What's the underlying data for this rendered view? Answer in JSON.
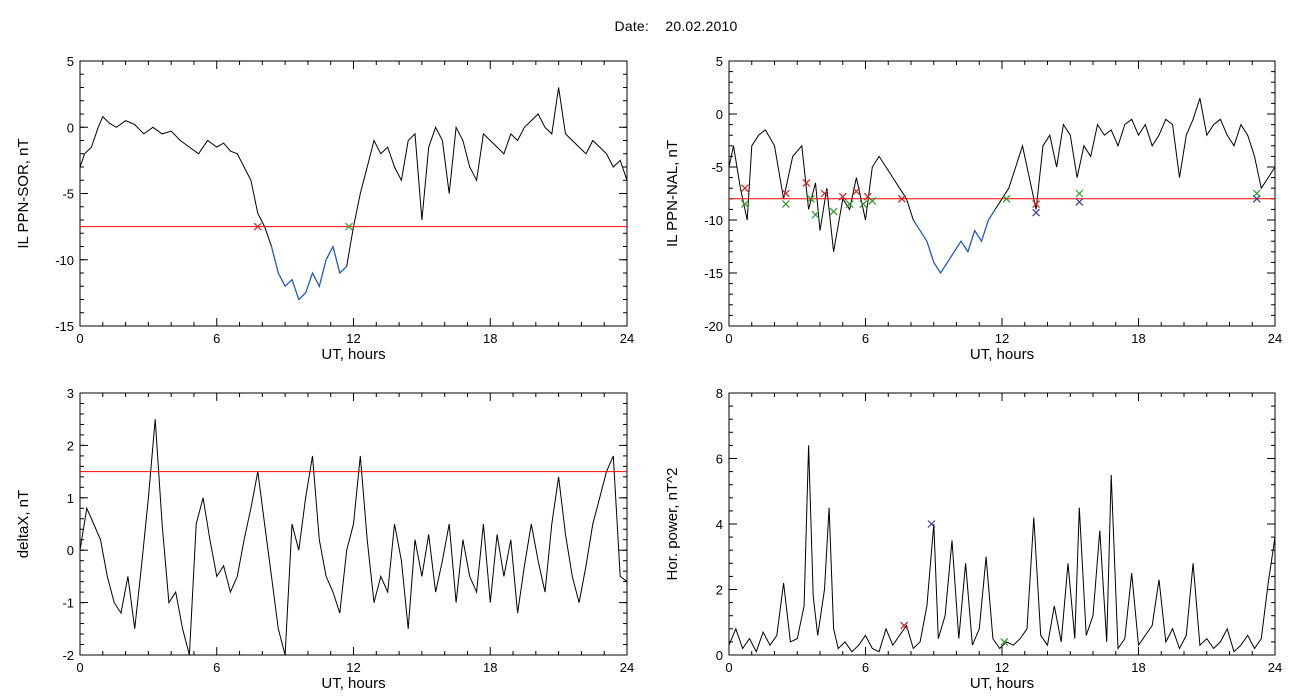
{
  "header": {
    "date_label": "Date:",
    "date_value": "20.02.2010"
  },
  "colors": {
    "trace": "#000000",
    "threshold": "#ff0000",
    "highlight": "#1f5fcc",
    "marker_red": "#d42020",
    "marker_green": "#2a9a2a",
    "marker_blue": "#3a3aa0"
  },
  "chart_data": [
    {
      "id": "p1",
      "type": "line",
      "ylabel": "IL PPN-SOR, nT",
      "xlabel": "UT, hours",
      "xlim": [
        0,
        24
      ],
      "ylim": [
        -15,
        5
      ],
      "xticks": [
        "0",
        "6",
        "12",
        "18",
        "24"
      ],
      "yticks": [
        "-15",
        "-10",
        "-5",
        "0",
        "5"
      ],
      "threshold": -7.5,
      "series": [
        {
          "x": [
            0,
            0.2,
            0.5,
            0.8,
            1,
            1.3,
            1.6,
            2,
            2.4,
            2.8,
            3.2,
            3.6,
            4,
            4.4,
            4.8,
            5.2,
            5.6,
            6,
            6.3,
            6.6,
            6.9,
            7.2,
            7.5,
            7.8,
            8.1,
            8.4,
            8.7,
            9,
            9.3,
            9.6,
            9.9,
            10.2,
            10.5,
            10.8,
            11.1,
            11.4,
            11.7,
            12,
            12.3,
            12.6,
            12.9,
            13.2,
            13.5,
            13.8,
            14.1,
            14.4,
            14.7,
            15,
            15.3,
            15.6,
            15.9,
            16.2,
            16.5,
            16.8,
            17.1,
            17.4,
            17.7,
            18,
            18.3,
            18.6,
            18.9,
            19.2,
            19.5,
            19.8,
            20.1,
            20.4,
            20.7,
            21,
            21.3,
            21.6,
            21.9,
            22.2,
            22.5,
            22.8,
            23.1,
            23.4,
            23.7,
            24
          ],
          "y": [
            -3,
            -2,
            -1.5,
            0,
            0.8,
            0.3,
            0,
            0.5,
            0.2,
            -0.5,
            0,
            -0.5,
            -0.3,
            -1,
            -1.5,
            -2,
            -1,
            -1.5,
            -1.2,
            -1.8,
            -2,
            -3,
            -4,
            -6.5,
            -7.5,
            -9,
            -11,
            -12,
            -11.5,
            -13,
            -12.5,
            -11,
            -12,
            -10,
            -9,
            -11,
            -10.5,
            -7.5,
            -5,
            -3,
            -1,
            -2,
            -1.5,
            -3,
            -4,
            -1,
            -0.5,
            -7,
            -1.5,
            0,
            -1,
            -5,
            0,
            -1,
            -3,
            -4,
            -0.5,
            -1,
            -1.5,
            -2,
            -0.5,
            -1,
            0,
            0.5,
            1,
            0,
            -0.5,
            3,
            -0.5,
            -1,
            -1.5,
            -2,
            -1,
            -1.5,
            -2,
            -3,
            -2.5,
            -4
          ]
        }
      ],
      "markers": [
        {
          "x": 7.8,
          "y": -7.5,
          "color": "red"
        },
        {
          "x": 11.8,
          "y": -7.5,
          "color": "green"
        }
      ]
    },
    {
      "id": "p2",
      "type": "line",
      "ylabel": "IL PPN-NAL, nT",
      "xlabel": "UT, hours",
      "xlim": [
        0,
        24
      ],
      "ylim": [
        -20,
        5
      ],
      "xticks": [
        "0",
        "6",
        "12",
        "18",
        "24"
      ],
      "yticks": [
        "-20",
        "-15",
        "-10",
        "-5",
        "0",
        "5"
      ],
      "threshold": -8,
      "series": [
        {
          "x": [
            0,
            0.2,
            0.5,
            0.8,
            1,
            1.3,
            1.6,
            2,
            2.4,
            2.8,
            3.2,
            3.5,
            3.8,
            4,
            4.3,
            4.6,
            5,
            5.3,
            5.6,
            6,
            6.3,
            6.6,
            6.9,
            7.2,
            7.5,
            7.8,
            8.1,
            8.4,
            8.7,
            9,
            9.3,
            9.6,
            9.9,
            10.2,
            10.5,
            10.8,
            11.1,
            11.4,
            11.7,
            12,
            12.3,
            12.6,
            12.9,
            13.2,
            13.5,
            13.8,
            14.1,
            14.4,
            14.7,
            15,
            15.3,
            15.6,
            15.9,
            16.2,
            16.5,
            16.8,
            17.1,
            17.4,
            17.7,
            18,
            18.3,
            18.6,
            18.9,
            19.2,
            19.5,
            19.8,
            20.1,
            20.4,
            20.7,
            21,
            21.3,
            21.6,
            21.9,
            22.2,
            22.5,
            22.8,
            23.1,
            23.4,
            23.7,
            24
          ],
          "y": [
            -5,
            -3,
            -7,
            -10,
            -3,
            -2,
            -1.5,
            -3,
            -8,
            -4,
            -3,
            -9,
            -6.5,
            -11,
            -7,
            -13,
            -8,
            -9,
            -6,
            -10,
            -5,
            -4,
            -5,
            -6,
            -7,
            -8,
            -10,
            -11,
            -12,
            -14,
            -15,
            -14,
            -13,
            -12,
            -13,
            -11,
            -12,
            -10,
            -9,
            -8,
            -7,
            -5,
            -3,
            -6,
            -9,
            -3,
            -2,
            -5,
            -1,
            -2,
            -6,
            -3,
            -4,
            -1,
            -2,
            -1.5,
            -3,
            -1,
            -0.5,
            -2,
            -1,
            -3,
            -2,
            -0.5,
            -1,
            -6,
            -2,
            -0.5,
            1.5,
            -2,
            -1,
            -0.5,
            -2,
            -3,
            -1,
            -2,
            -4,
            -7,
            -6,
            -5
          ]
        }
      ],
      "markers": [
        {
          "x": 0.7,
          "y": -7,
          "color": "red"
        },
        {
          "x": 0.7,
          "y": -8.5,
          "color": "green"
        },
        {
          "x": 2.5,
          "y": -7.5,
          "color": "red"
        },
        {
          "x": 2.5,
          "y": -8.5,
          "color": "green"
        },
        {
          "x": 3.4,
          "y": -6.5,
          "color": "red"
        },
        {
          "x": 3.6,
          "y": -8,
          "color": "green"
        },
        {
          "x": 3.8,
          "y": -9.5,
          "color": "green"
        },
        {
          "x": 4.2,
          "y": -7.5,
          "color": "red"
        },
        {
          "x": 4.6,
          "y": -9.2,
          "color": "green"
        },
        {
          "x": 5.0,
          "y": -7.8,
          "color": "red"
        },
        {
          "x": 5.3,
          "y": -8.5,
          "color": "green"
        },
        {
          "x": 5.6,
          "y": -7.3,
          "color": "red"
        },
        {
          "x": 5.9,
          "y": -8.5,
          "color": "green"
        },
        {
          "x": 6.1,
          "y": -7.8,
          "color": "red"
        },
        {
          "x": 6.3,
          "y": -8.2,
          "color": "green"
        },
        {
          "x": 7.6,
          "y": -8,
          "color": "red"
        },
        {
          "x": 12.2,
          "y": -8,
          "color": "green"
        },
        {
          "x": 13.5,
          "y": -9.3,
          "color": "blue"
        },
        {
          "x": 13.5,
          "y": -8.5,
          "color": "red"
        },
        {
          "x": 15.4,
          "y": -8.3,
          "color": "blue"
        },
        {
          "x": 15.4,
          "y": -7.5,
          "color": "green"
        },
        {
          "x": 23.2,
          "y": -8,
          "color": "blue"
        },
        {
          "x": 23.2,
          "y": -7.5,
          "color": "green"
        }
      ]
    },
    {
      "id": "p3",
      "type": "line",
      "ylabel": "deltaX, nT",
      "xlabel": "UT, hours",
      "xlim": [
        0,
        24
      ],
      "ylim": [
        -2,
        3
      ],
      "xticks": [
        "0",
        "6",
        "12",
        "18",
        "24"
      ],
      "yticks": [
        "-2",
        "-1",
        "0",
        "1",
        "2",
        "3"
      ],
      "threshold": 1.5,
      "series": [
        {
          "x": [
            0,
            0.3,
            0.6,
            0.9,
            1.2,
            1.5,
            1.8,
            2.1,
            2.4,
            2.7,
            3,
            3.3,
            3.6,
            3.9,
            4.2,
            4.5,
            4.8,
            5.1,
            5.4,
            5.7,
            6,
            6.3,
            6.6,
            6.9,
            7.2,
            7.5,
            7.8,
            8.1,
            8.4,
            8.7,
            9,
            9.3,
            9.6,
            9.9,
            10.2,
            10.5,
            10.8,
            11.1,
            11.4,
            11.7,
            12,
            12.3,
            12.6,
            12.9,
            13.2,
            13.5,
            13.8,
            14.1,
            14.4,
            14.7,
            15,
            15.3,
            15.6,
            15.9,
            16.2,
            16.5,
            16.8,
            17.1,
            17.4,
            17.7,
            18,
            18.3,
            18.6,
            18.9,
            19.2,
            19.5,
            19.8,
            20.1,
            20.4,
            20.7,
            21,
            21.3,
            21.6,
            21.9,
            22.2,
            22.5,
            22.8,
            23.1,
            23.4,
            23.7,
            24
          ],
          "y": [
            0,
            0.8,
            0.5,
            0.2,
            -0.5,
            -1,
            -1.2,
            -0.5,
            -1.5,
            -0.3,
            1,
            2.5,
            0.5,
            -1,
            -0.8,
            -1.5,
            -2,
            0.5,
            1,
            0.2,
            -0.5,
            -0.3,
            -0.8,
            -0.5,
            0.2,
            0.8,
            1.5,
            0.5,
            -0.5,
            -1.5,
            -2,
            0.5,
            0,
            1,
            1.8,
            0.2,
            -0.5,
            -0.8,
            -1.2,
            0,
            0.5,
            1.8,
            0.2,
            -1,
            -0.5,
            -0.8,
            0.5,
            -0.2,
            -1.5,
            0.2,
            -0.5,
            0.3,
            -0.8,
            -0.2,
            0.5,
            -1,
            0.2,
            -0.5,
            -0.8,
            0.5,
            -1,
            0.3,
            -0.5,
            0.2,
            -1.2,
            -0.3,
            0.5,
            -0.2,
            -0.8,
            0.5,
            1.4,
            0.3,
            -0.5,
            -1,
            -0.3,
            0.5,
            1,
            1.5,
            1.8,
            -0.5,
            -0.6
          ]
        }
      ]
    },
    {
      "id": "p4",
      "type": "line",
      "ylabel": "Hor. power, nT^2",
      "xlabel": "UT, hours",
      "xlim": [
        0,
        24
      ],
      "ylim": [
        0,
        8
      ],
      "xticks": [
        "0",
        "6",
        "12",
        "18",
        "24"
      ],
      "yticks": [
        "0",
        "2",
        "4",
        "6",
        "8"
      ],
      "series": [
        {
          "x": [
            0,
            0.3,
            0.6,
            0.9,
            1.2,
            1.5,
            1.8,
            2.1,
            2.4,
            2.7,
            3,
            3.3,
            3.5,
            3.7,
            3.9,
            4.2,
            4.4,
            4.6,
            4.8,
            5.1,
            5.4,
            5.7,
            6,
            6.3,
            6.6,
            6.9,
            7.2,
            7.5,
            7.8,
            8.1,
            8.4,
            8.7,
            9,
            9.2,
            9.5,
            9.8,
            10.1,
            10.4,
            10.7,
            11,
            11.3,
            11.6,
            11.9,
            12.2,
            12.5,
            12.8,
            13.1,
            13.4,
            13.7,
            14,
            14.3,
            14.6,
            14.9,
            15.2,
            15.4,
            15.7,
            16,
            16.3,
            16.6,
            16.8,
            17.1,
            17.4,
            17.7,
            18,
            18.3,
            18.6,
            18.9,
            19.2,
            19.5,
            19.8,
            20.1,
            20.4,
            20.7,
            21,
            21.3,
            21.6,
            21.9,
            22.2,
            22.5,
            22.8,
            23.1,
            23.4,
            23.7,
            24
          ],
          "y": [
            0.3,
            0.8,
            0.2,
            0.5,
            0.1,
            0.7,
            0.3,
            0.6,
            2.2,
            0.4,
            0.5,
            1.5,
            6.4,
            1.8,
            0.6,
            2,
            4.5,
            0.8,
            0.2,
            0.4,
            0.1,
            0.3,
            0.6,
            0.2,
            0.1,
            0.8,
            0.3,
            0.6,
            0.9,
            0.2,
            0.4,
            1.5,
            4,
            0.5,
            1.2,
            3.5,
            0.5,
            2.8,
            0.3,
            0.8,
            3,
            0.5,
            0.2,
            0.4,
            0.3,
            0.5,
            0.8,
            4.2,
            0.6,
            0.3,
            1.5,
            0.4,
            2.8,
            0.5,
            4.5,
            0.6,
            1.2,
            3.8,
            0.4,
            5.5,
            0.2,
            0.5,
            2.5,
            0.3,
            0.6,
            0.9,
            2.3,
            0.4,
            0.8,
            0.2,
            0.6,
            2.8,
            0.3,
            0.5,
            0.2,
            0.4,
            0.8,
            0.1,
            0.3,
            0.6,
            0.2,
            0.5,
            2.2,
            3.6
          ]
        }
      ],
      "markers": [
        {
          "x": 7.7,
          "y": 0.9,
          "color": "red"
        },
        {
          "x": 8.9,
          "y": 4.0,
          "color": "blue"
        },
        {
          "x": 12.1,
          "y": 0.4,
          "color": "green"
        }
      ]
    }
  ]
}
